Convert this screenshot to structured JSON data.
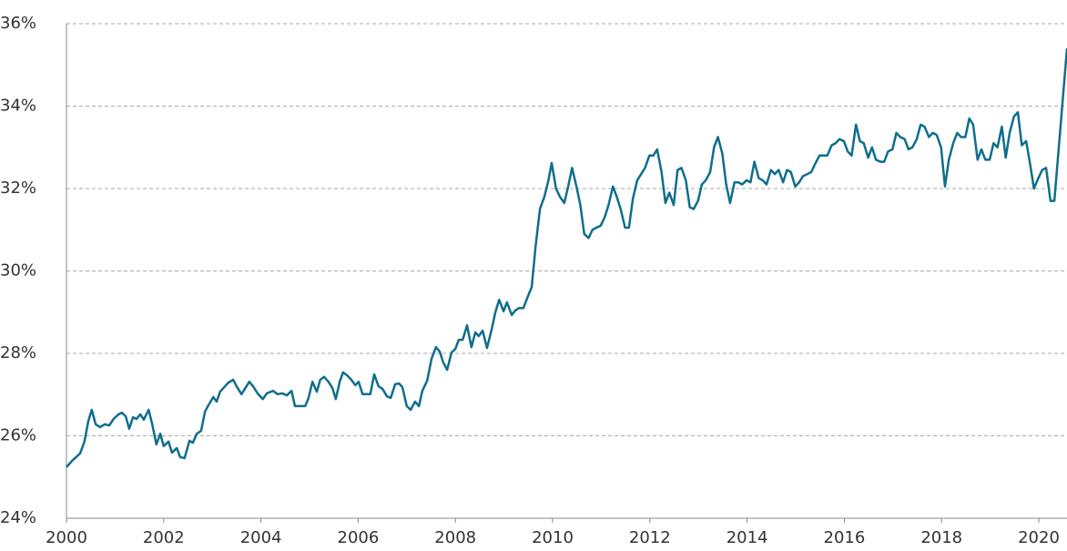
{
  "chart_data": {
    "type": "line",
    "x": [
      2000.0,
      2000.13,
      2000.28,
      2000.37,
      2000.45,
      2000.52,
      2000.6,
      2000.69,
      2000.79,
      2000.88,
      2000.97,
      2001.07,
      2001.14,
      2001.22,
      2001.29,
      2001.37,
      2001.44,
      2001.52,
      2001.59,
      2001.69,
      2001.76,
      2001.85,
      2001.93,
      2002.0,
      2002.1,
      2002.17,
      2002.27,
      2002.34,
      2002.43,
      2002.53,
      2002.6,
      2002.68,
      2002.77,
      2002.85,
      2002.92,
      2003.02,
      2003.09,
      2003.16,
      2003.26,
      2003.33,
      2003.43,
      2003.5,
      2003.6,
      2003.67,
      2003.76,
      2003.84,
      2003.93,
      2004.04,
      2004.12,
      2004.25,
      2004.34,
      2004.44,
      2004.53,
      2004.63,
      2004.7,
      2004.81,
      2004.91,
      2004.98,
      2005.06,
      2005.15,
      2005.22,
      2005.3,
      2005.39,
      2005.47,
      2005.54,
      2005.62,
      2005.69,
      2005.77,
      2005.86,
      2005.94,
      2006.01,
      2006.09,
      2006.16,
      2006.25,
      2006.33,
      2006.42,
      2006.5,
      2006.59,
      2006.67,
      2006.76,
      2006.84,
      2006.91,
      2007.0,
      2007.08,
      2007.17,
      2007.25,
      2007.32,
      2007.42,
      2007.51,
      2007.6,
      2007.68,
      2007.75,
      2007.83,
      2007.92,
      2008.0,
      2008.07,
      2008.15,
      2008.24,
      2008.33,
      2008.41,
      2008.48,
      2008.56,
      2008.65,
      2008.75,
      2008.82,
      2008.9,
      2008.99,
      2009.06,
      2009.16,
      2009.23,
      2009.31,
      2009.4,
      2009.48,
      2009.57,
      2009.65,
      2009.74,
      2009.83,
      2009.91,
      2009.98,
      2010.07,
      2010.15,
      2010.24,
      2010.32,
      2010.4,
      2010.49,
      2010.57,
      2010.65,
      2010.74,
      2010.82,
      2010.9,
      2010.99,
      2011.07,
      2011.15,
      2011.24,
      2011.32,
      2011.4,
      2011.49,
      2011.57,
      2011.65,
      2011.74,
      2011.82,
      2011.9,
      2011.99,
      2012.07,
      2012.15,
      2012.24,
      2012.32,
      2012.4,
      2012.49,
      2012.57,
      2012.65,
      2012.74,
      2012.82,
      2012.9,
      2012.99,
      2013.07,
      2013.15,
      2013.24,
      2013.32,
      2013.4,
      2013.49,
      2013.57,
      2013.65,
      2013.74,
      2013.82,
      2013.9,
      2013.99,
      2014.07,
      2014.15,
      2014.24,
      2014.32,
      2014.4,
      2014.49,
      2014.57,
      2014.65,
      2014.74,
      2014.82,
      2014.9,
      2014.99,
      2015.07,
      2015.15,
      2015.24,
      2015.32,
      2015.4,
      2015.49,
      2015.57,
      2015.65,
      2015.74,
      2015.82,
      2015.9,
      2015.99,
      2016.07,
      2016.15,
      2016.24,
      2016.32,
      2016.4,
      2016.49,
      2016.57,
      2016.65,
      2016.74,
      2016.82,
      2016.9,
      2016.99,
      2017.07,
      2017.15,
      2017.24,
      2017.32,
      2017.4,
      2017.49,
      2017.57,
      2017.65,
      2017.74,
      2017.82,
      2017.9,
      2017.99,
      2018.07,
      2018.15,
      2018.24,
      2018.32,
      2018.4,
      2018.49,
      2018.57,
      2018.65,
      2018.74,
      2018.82,
      2018.9,
      2018.99,
      2019.07,
      2019.15,
      2019.24,
      2019.32,
      2019.4,
      2019.49,
      2019.57,
      2019.65,
      2019.74,
      2019.82,
      2019.9,
      2019.99,
      2020.07,
      2020.15,
      2020.24,
      2020.32,
      2020.58
    ],
    "values": [
      25.24,
      25.41,
      25.57,
      25.86,
      26.36,
      26.63,
      26.28,
      26.21,
      26.28,
      26.25,
      26.41,
      26.52,
      26.56,
      26.47,
      26.17,
      26.45,
      26.41,
      26.52,
      26.39,
      26.63,
      26.3,
      25.79,
      26.05,
      25.75,
      25.86,
      25.59,
      25.7,
      25.48,
      25.46,
      25.88,
      25.83,
      26.05,
      26.12,
      26.59,
      26.74,
      26.94,
      26.83,
      27.07,
      27.2,
      27.29,
      27.36,
      27.2,
      27.01,
      27.14,
      27.31,
      27.2,
      27.03,
      26.89,
      27.03,
      27.09,
      27.01,
      27.03,
      26.98,
      27.09,
      26.72,
      26.72,
      26.72,
      26.92,
      27.31,
      27.07,
      27.36,
      27.43,
      27.31,
      27.16,
      26.89,
      27.31,
      27.54,
      27.47,
      27.36,
      27.23,
      27.31,
      27.01,
      27.01,
      27.01,
      27.49,
      27.2,
      27.14,
      26.96,
      26.92,
      27.25,
      27.27,
      27.18,
      26.72,
      26.63,
      26.83,
      26.72,
      27.09,
      27.34,
      27.87,
      28.15,
      28.04,
      27.78,
      27.6,
      28.02,
      28.11,
      28.33,
      28.33,
      28.68,
      28.15,
      28.51,
      28.42,
      28.55,
      28.13,
      28.6,
      28.99,
      29.3,
      29.02,
      29.24,
      28.93,
      29.04,
      29.1,
      29.1,
      29.35,
      29.61,
      30.6,
      31.51,
      31.8,
      32.18,
      32.62,
      32.0,
      31.8,
      31.65,
      32.05,
      32.5,
      32.05,
      31.6,
      30.9,
      30.8,
      31.0,
      31.05,
      31.1,
      31.3,
      31.6,
      32.05,
      31.8,
      31.5,
      31.05,
      31.05,
      31.75,
      32.2,
      32.35,
      32.5,
      32.8,
      32.8,
      32.95,
      32.4,
      31.65,
      31.9,
      31.6,
      32.45,
      32.5,
      32.2,
      31.55,
      31.5,
      31.7,
      32.1,
      32.2,
      32.4,
      33.0,
      33.25,
      32.85,
      32.1,
      31.65,
      32.15,
      32.15,
      32.1,
      32.2,
      32.15,
      32.65,
      32.25,
      32.2,
      32.1,
      32.45,
      32.35,
      32.45,
      32.15,
      32.45,
      32.4,
      32.05,
      32.15,
      32.3,
      32.35,
      32.4,
      32.6,
      32.8,
      32.8,
      32.8,
      33.05,
      33.1,
      33.2,
      33.15,
      32.9,
      32.8,
      33.55,
      33.15,
      33.1,
      32.75,
      33.0,
      32.7,
      32.65,
      32.65,
      32.9,
      32.95,
      33.35,
      33.25,
      33.2,
      32.95,
      33.0,
      33.2,
      33.55,
      33.5,
      33.25,
      33.35,
      33.3,
      33.0,
      32.05,
      32.7,
      33.1,
      33.35,
      33.25,
      33.25,
      33.7,
      33.55,
      32.7,
      32.95,
      32.7,
      32.7,
      33.1,
      33.0,
      33.5,
      32.75,
      33.35,
      33.75,
      33.85,
      33.05,
      33.15,
      32.6,
      32.0,
      32.25,
      32.45,
      32.5,
      31.7,
      31.7,
      35.4
    ],
    "color": "#0f6e8c",
    "xlim": [
      2000,
      2020.58
    ],
    "xticks": [
      2000,
      2002,
      2004,
      2006,
      2008,
      2010,
      2012,
      2014,
      2016,
      2018,
      2020
    ],
    "ylim": [
      24,
      36
    ],
    "yticks": [
      {
        "value": 24,
        "label": "24%"
      },
      {
        "value": 26,
        "label": "26%"
      },
      {
        "value": 28,
        "label": "28%"
      },
      {
        "value": 30,
        "label": "30%"
      },
      {
        "value": 32,
        "label": "32%"
      },
      {
        "value": 34,
        "label": "34%"
      },
      {
        "value": 36,
        "label": "36%"
      }
    ],
    "grid": true
  }
}
